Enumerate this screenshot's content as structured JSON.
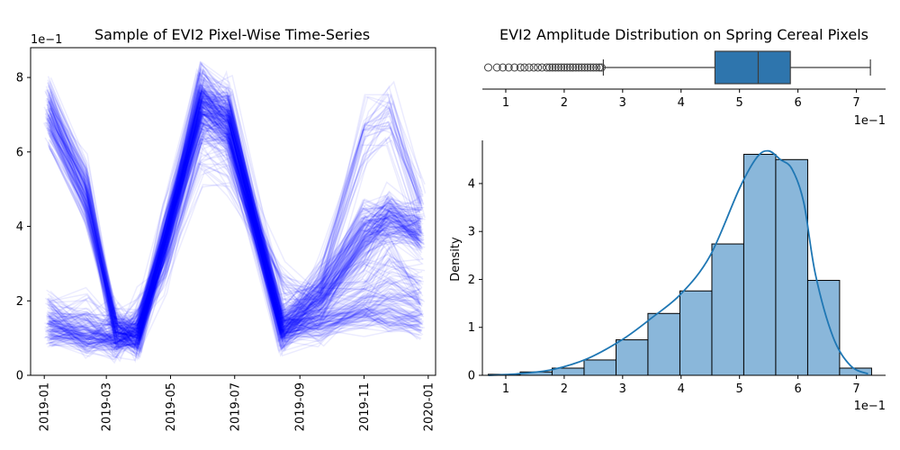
{
  "chart_data": [
    {
      "type": "line",
      "title": "Sample of EVI2 Pixel-Wise Time-Series",
      "ylim": [
        0,
        8.8
      ],
      "y_scale_label": "1e−1",
      "y_ticks": [
        0,
        2,
        4,
        6,
        8
      ],
      "x_ticks": [
        "2019-01",
        "2019-03",
        "2019-05",
        "2019-07",
        "2019-09",
        "2019-11",
        "2020-01"
      ],
      "x_tick_dates": [
        "2019-01-01",
        "2019-03-01",
        "2019-05-01",
        "2019-07-01",
        "2019-09-01",
        "2019-11-01",
        "2020-01-01"
      ],
      "x_range": [
        "2018-12-19",
        "2020-01-08"
      ],
      "line_color": "#0000ff",
      "line_alpha": 0.08,
      "dates": [
        "2019-01-05",
        "2019-02-10",
        "2019-03-10",
        "2019-03-31",
        "2019-04-25",
        "2019-05-30",
        "2019-06-25",
        "2019-08-15",
        "2019-09-20",
        "2019-11-01",
        "2019-11-25",
        "2019-12-25"
      ],
      "series_groups": [
        {
          "template": [
            7.1,
            5.0,
            1.2,
            1.1,
            3.5,
            7.5,
            6.9,
            1.3,
            2.2,
            4.0,
            4.2,
            3.8
          ],
          "count": 90,
          "spread": 0.5
        },
        {
          "template": [
            1.5,
            1.1,
            1.0,
            1.2,
            3.8,
            7.3,
            6.8,
            1.2,
            1.9,
            3.5,
            4.3,
            4.0
          ],
          "count": 70,
          "spread": 0.5
        },
        {
          "template": [
            1.3,
            1.2,
            1.1,
            1.2,
            3.2,
            6.8,
            7.1,
            1.3,
            2.5,
            6.5,
            6.9,
            4.5
          ],
          "count": 35,
          "spread": 0.6
        },
        {
          "template": [
            6.8,
            4.5,
            1.3,
            1.0,
            3.6,
            7.2,
            6.5,
            1.2,
            1.4,
            1.6,
            1.5,
            1.4
          ],
          "count": 55,
          "spread": 0.35
        },
        {
          "template": [
            1.6,
            1.4,
            1.3,
            1.6,
            3.0,
            6.0,
            5.8,
            2.5,
            1.9,
            2.5,
            3.0,
            2.4
          ],
          "count": 30,
          "spread": 0.7
        },
        {
          "template": [
            1.2,
            1.0,
            0.9,
            1.0,
            3.5,
            7.6,
            7.0,
            1.1,
            1.3,
            1.9,
            2.2,
            2.0
          ],
          "count": 40,
          "spread": 0.4
        }
      ]
    },
    {
      "type": "box",
      "title": "EVI2 Amplitude Distribution on Spring Cereal Pixels",
      "xlim": [
        0.6,
        7.5
      ],
      "x_scale_label": "1e−1",
      "x_ticks": [
        1,
        2,
        3,
        4,
        5,
        6,
        7
      ],
      "q1": 4.58,
      "median": 5.32,
      "q3": 5.87,
      "whisker_low": 2.67,
      "whisker_high": 7.24,
      "outliers": [
        0.7,
        0.85,
        0.95,
        1.05,
        1.15,
        1.25,
        1.32,
        1.4,
        1.48,
        1.55,
        1.62,
        1.7,
        1.75,
        1.8,
        1.85,
        1.9,
        1.95,
        2.0,
        2.05,
        2.1,
        2.15,
        2.2,
        2.25,
        2.3,
        2.35,
        2.4,
        2.45,
        2.5,
        2.55,
        2.6,
        2.64
      ],
      "box_color": "#2e75ad"
    },
    {
      "type": "histogram",
      "ylabel": "Density",
      "xlim": [
        0.6,
        7.5
      ],
      "ylim": [
        0,
        4.9
      ],
      "x_scale_label": "1e−1",
      "x_ticks": [
        1,
        2,
        3,
        4,
        5,
        6,
        7
      ],
      "y_ticks": [
        0,
        1,
        2,
        3,
        4
      ],
      "bin_edges": [
        0.7,
        1.247,
        1.793,
        2.34,
        2.887,
        3.433,
        3.98,
        4.527,
        5.073,
        5.62,
        6.167,
        6.713,
        7.26
      ],
      "densities": [
        0.02,
        0.07,
        0.15,
        0.32,
        0.74,
        1.29,
        1.76,
        2.74,
        4.61,
        4.5,
        1.98,
        0.15
      ],
      "kde_x": [
        0.7,
        1.2,
        1.8,
        2.4,
        3.0,
        3.5,
        4.0,
        4.5,
        5.0,
        5.3,
        5.5,
        5.7,
        5.9,
        6.1,
        6.3,
        6.6,
        6.9,
        7.2
      ],
      "kde_y": [
        0.0,
        0.03,
        0.12,
        0.35,
        0.75,
        1.2,
        1.7,
        2.5,
        3.9,
        4.55,
        4.68,
        4.5,
        4.3,
        3.6,
        2.1,
        0.8,
        0.2,
        0.03
      ],
      "bar_color": "#8ab7da",
      "line_color": "#1f77b4"
    }
  ]
}
